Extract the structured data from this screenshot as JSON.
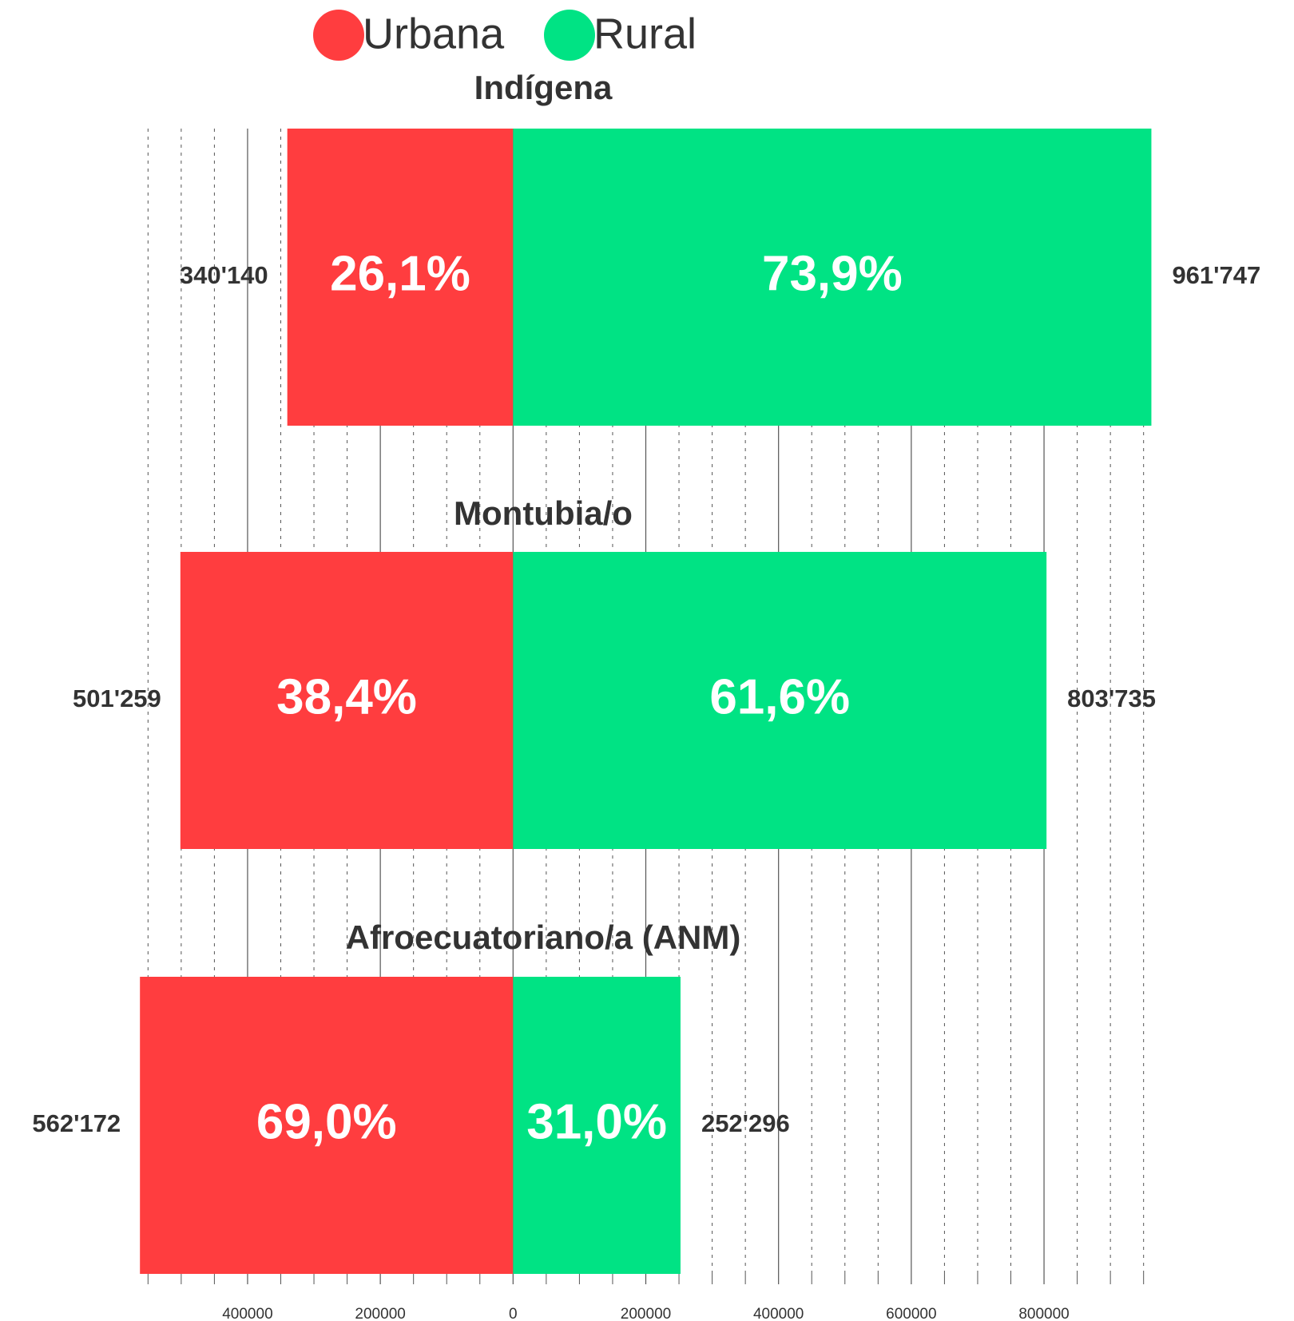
{
  "chart_data": {
    "type": "diverging-bar",
    "legend_position": "top",
    "categories": [
      "Indígena",
      "Montubia/o",
      "Afroecuatoriano/a (ANM)"
    ],
    "series": [
      {
        "name": "Urbana",
        "color": "#ff3d3f",
        "direction": "left",
        "values": [
          340140,
          501259,
          562172
        ],
        "value_labels": [
          "340'140",
          "501'259",
          "562'172"
        ],
        "share_labels": [
          "26,1%",
          "38,4%",
          "69,0%"
        ]
      },
      {
        "name": "Rural",
        "color": "#00e384",
        "direction": "right",
        "values": [
          961747,
          803735,
          252296
        ],
        "value_labels": [
          "961'747",
          "803'735",
          "252'296"
        ],
        "share_labels": [
          "73,9%",
          "61,6%",
          "31,0%"
        ]
      }
    ],
    "xlim": [
      -560000,
      960000
    ],
    "xticks": [
      {
        "value": -400000,
        "label": "400000"
      },
      {
        "value": -200000,
        "label": "200000"
      },
      0,
      200000,
      400000,
      600000,
      800000
    ],
    "minor_grid": 50000,
    "grid": true
  }
}
